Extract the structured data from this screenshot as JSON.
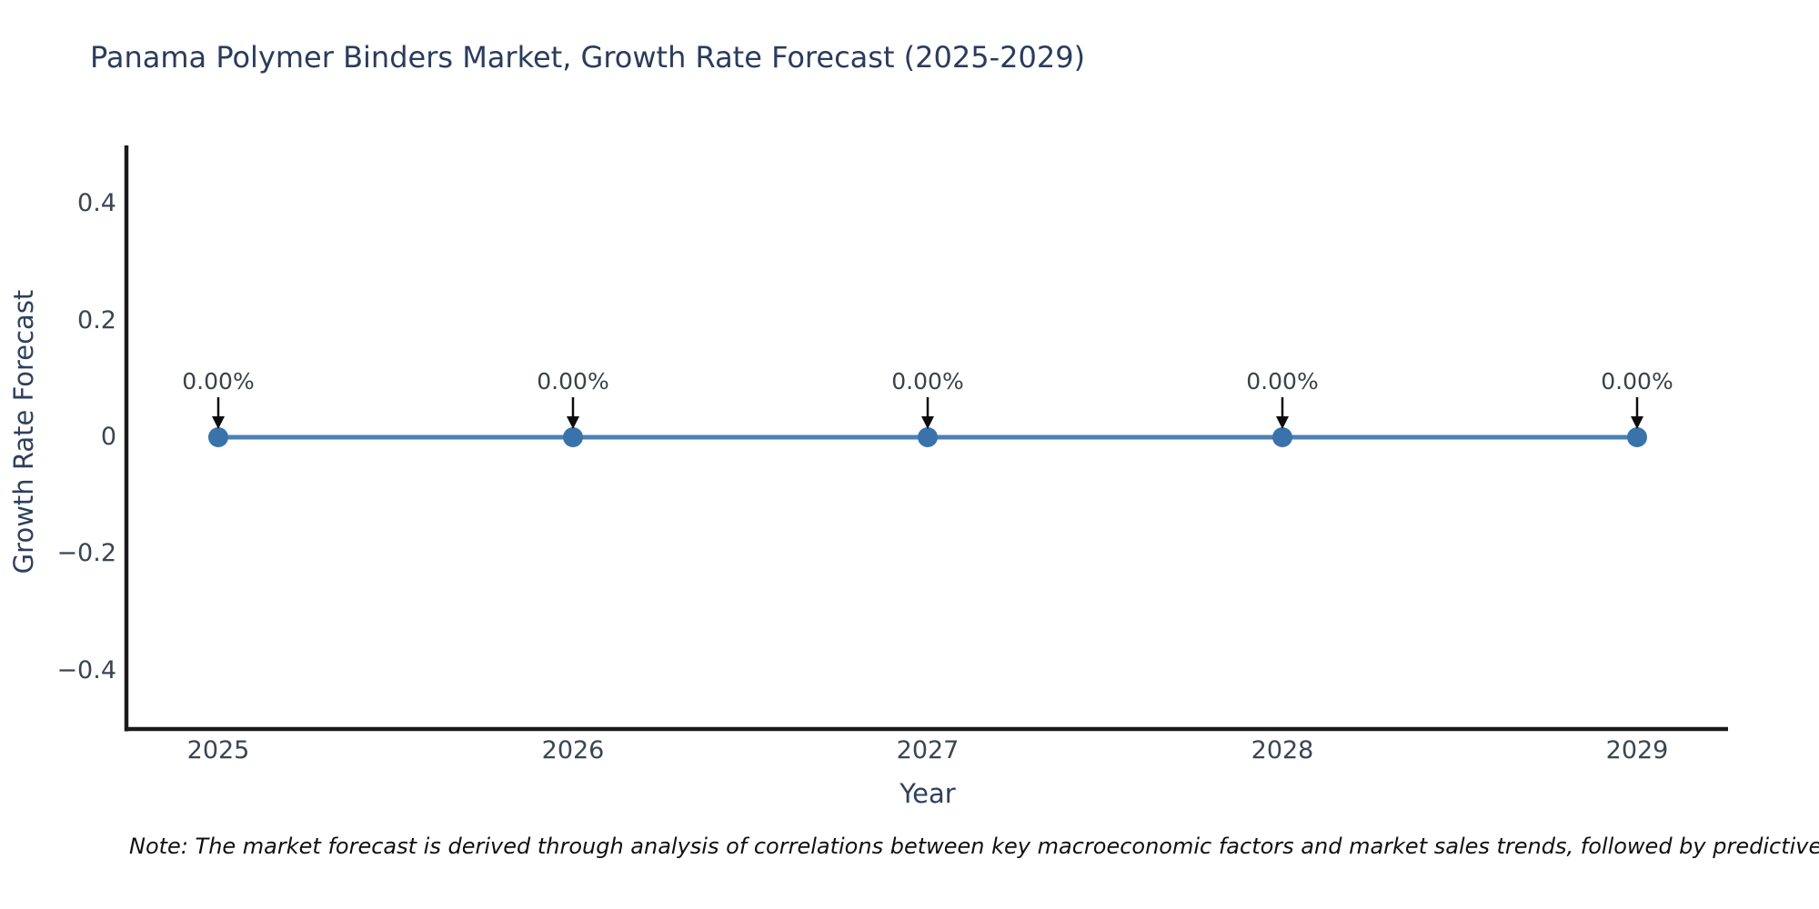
{
  "title": "Panama Polymer Binders Market, Growth Rate Forecast (2025-2029)",
  "note": "Note: The market forecast is derived through analysis of correlations between key macroeconomic factors and market sales trends, followed by predictive modeling to project future sal",
  "chart_data": {
    "type": "line",
    "title": "Panama Polymer Binders Market, Growth Rate Forecast (2025-2029)",
    "xlabel": "Year",
    "ylabel": "Growth Rate Forecast",
    "categories": [
      "2025",
      "2026",
      "2027",
      "2028",
      "2029"
    ],
    "series": [
      {
        "name": "Growth Rate Forecast",
        "values": [
          0,
          0,
          0,
          0,
          0
        ]
      }
    ],
    "point_labels": [
      "0.00%",
      "0.00%",
      "0.00%",
      "0.00%",
      "0.00%"
    ],
    "y_ticks": [
      {
        "v": 0.4,
        "label": "0.4"
      },
      {
        "v": 0.2,
        "label": "0.2"
      },
      {
        "v": 0,
        "label": "0"
      },
      {
        "v": -0.2,
        "label": "−0.2"
      },
      {
        "v": -0.4,
        "label": "−0.4"
      }
    ],
    "ylim": [
      -0.5,
      0.5
    ],
    "grid": false,
    "legend": "none",
    "colors": {
      "line": "#4c80b4",
      "marker": "#3a72ac",
      "arrow": "#0d0d0d",
      "spine": "#1b1b1b",
      "title": "#2b3c5c",
      "tick": "#3b4452",
      "annotation": "#3b4147",
      "note": "#101010"
    }
  }
}
